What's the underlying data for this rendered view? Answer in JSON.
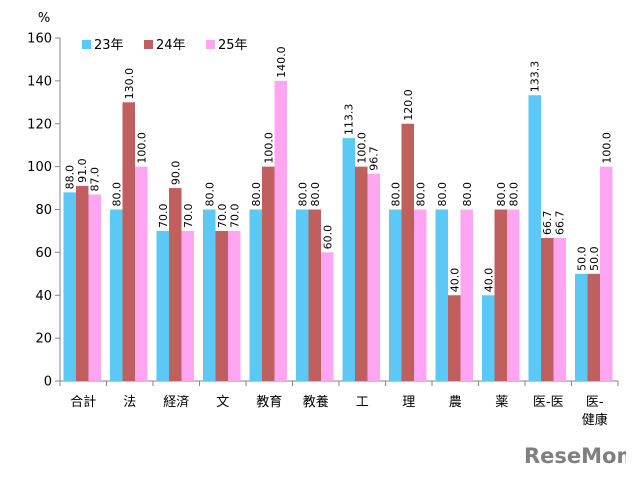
{
  "chart_data": {
    "type": "bar",
    "y_unit": "%",
    "ylim": [
      0,
      160
    ],
    "yticks": [
      0,
      20,
      40,
      60,
      80,
      100,
      120,
      140,
      160
    ],
    "grid": false,
    "legend_position": "top-left",
    "categories": [
      "合計",
      "法",
      "経済",
      "文",
      "教育",
      "教養",
      "工",
      "理",
      "農",
      "薬",
      "医-医",
      "医-\n健康"
    ],
    "series": [
      {
        "name": "23年",
        "color": "#5BC8F5",
        "values": [
          88.0,
          80.0,
          70.0,
          80.0,
          80.0,
          80.0,
          113.3,
          80.0,
          80.0,
          40.0,
          133.3,
          50.0
        ]
      },
      {
        "name": "24年",
        "color": "#C0605E",
        "values": [
          91.0,
          130.0,
          90.0,
          70.0,
          100.0,
          80.0,
          100.0,
          120.0,
          40.0,
          80.0,
          66.7,
          50.0
        ]
      },
      {
        "name": "25年",
        "color": "#FFA6F2",
        "values": [
          87.0,
          100.0,
          70.0,
          70.0,
          140.0,
          60.0,
          96.7,
          80.0,
          80.0,
          80.0,
          66.7,
          100.0
        ]
      }
    ]
  },
  "brand": {
    "logo_text": "ReseMom",
    "logo_color": "#7F7F7F"
  }
}
